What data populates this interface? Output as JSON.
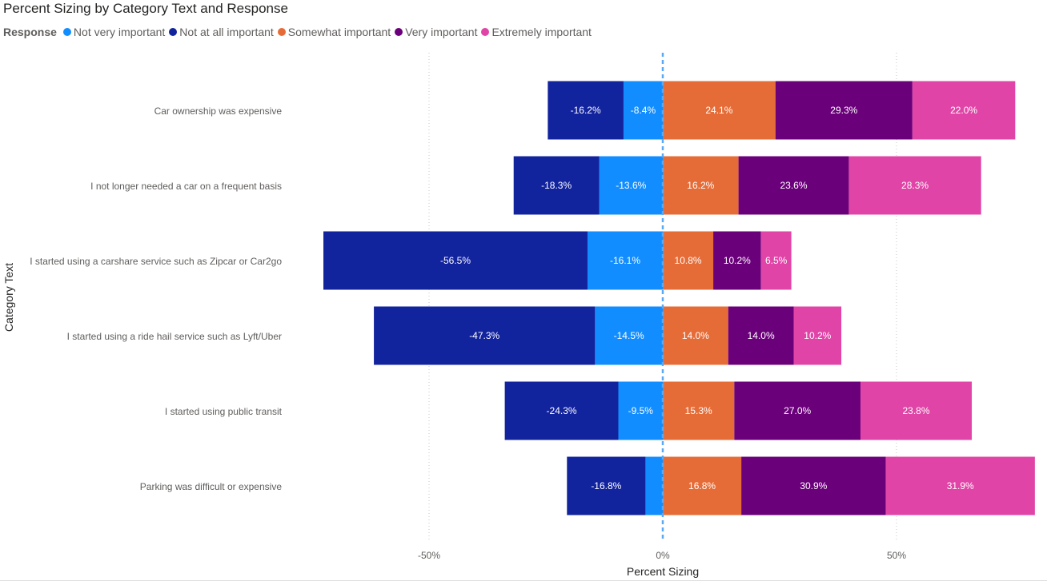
{
  "chart_data": {
    "type": "bar",
    "orientation": "horizontal-diverging-stacked",
    "title": "Percent Sizing by Category Text and Response",
    "xlabel": "Percent Sizing",
    "ylabel": "Category Text",
    "legend_title": "Response",
    "legend_order": [
      "Not very important",
      "Not at all important",
      "Somewhat important",
      "Very important",
      "Extremely important"
    ],
    "xlim": [
      -72,
      80
    ],
    "xticks": [
      {
        "value": -50,
        "label": "-50%"
      },
      {
        "value": 0,
        "label": "0%"
      },
      {
        "value": 50,
        "label": "50%"
      }
    ],
    "categories": [
      "Car ownership was expensive",
      "I not longer needed a car on a frequent basis",
      "I started using a carshare service such as Zipcar or Car2go",
      "I started using a ride hail service such as Lyft/Uber",
      "I started using public transit",
      "Parking was difficult or expensive"
    ],
    "series": [
      {
        "name": "Not at all important",
        "color": "#12239e",
        "side": "negative",
        "stack_order": 2,
        "values": [
          -16.2,
          -18.3,
          -56.5,
          -47.3,
          -24.3,
          -16.8
        ],
        "labels": [
          "-16.2%",
          "-18.3%",
          "-56.5%",
          "-47.3%",
          "-24.3%",
          "-16.8%"
        ]
      },
      {
        "name": "Not very important",
        "color": "#118dff",
        "side": "negative",
        "stack_order": 1,
        "values": [
          -8.4,
          -13.6,
          -16.1,
          -14.5,
          -9.5,
          -3.7
        ],
        "labels": [
          "-8.4%",
          "-13.6%",
          "-16.1%",
          "-14.5%",
          "-9.5%",
          ""
        ]
      },
      {
        "name": "Somewhat important",
        "color": "#e66c37",
        "side": "positive",
        "stack_order": 1,
        "values": [
          24.1,
          16.2,
          10.8,
          14.0,
          15.3,
          16.8
        ],
        "labels": [
          "24.1%",
          "16.2%",
          "10.8%",
          "14.0%",
          "15.3%",
          "16.8%"
        ]
      },
      {
        "name": "Very important",
        "color": "#6b007b",
        "side": "positive",
        "stack_order": 2,
        "values": [
          29.3,
          23.6,
          10.2,
          14.0,
          27.0,
          30.9
        ],
        "labels": [
          "29.3%",
          "23.6%",
          "10.2%",
          "14.0%",
          "27.0%",
          "30.9%"
        ]
      },
      {
        "name": "Extremely important",
        "color": "#e044a7",
        "side": "positive",
        "stack_order": 3,
        "values": [
          22.0,
          28.3,
          6.5,
          10.2,
          23.8,
          31.9
        ],
        "labels": [
          "22.0%",
          "28.3%",
          "6.5%",
          "10.2%",
          "23.8%",
          "31.9%"
        ]
      }
    ]
  }
}
